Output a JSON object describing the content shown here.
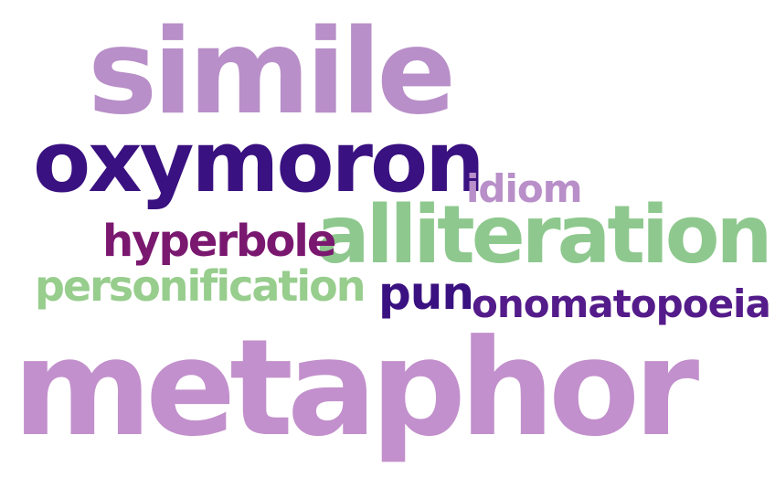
{
  "words": {
    "simile": {
      "text": "simile",
      "color": "#b88fc8"
    },
    "oxymoron": {
      "text": "oxymoron",
      "color": "#3a1180"
    },
    "idiom": {
      "text": "idiom",
      "color": "#b88fc8"
    },
    "alliteration": {
      "text": "alliteration",
      "color": "#8ec88e"
    },
    "hyperbole": {
      "text": "hyperbole",
      "color": "#7a1870"
    },
    "personification": {
      "text": "personification",
      "color": "#97cd8d"
    },
    "pun": {
      "text": "pun",
      "color": "#3a1180"
    },
    "onomatopoeia": {
      "text": "onomatopoeia",
      "color": "#541b8a"
    },
    "metaphor": {
      "text": "metaphor",
      "color": "#c290cc"
    }
  }
}
